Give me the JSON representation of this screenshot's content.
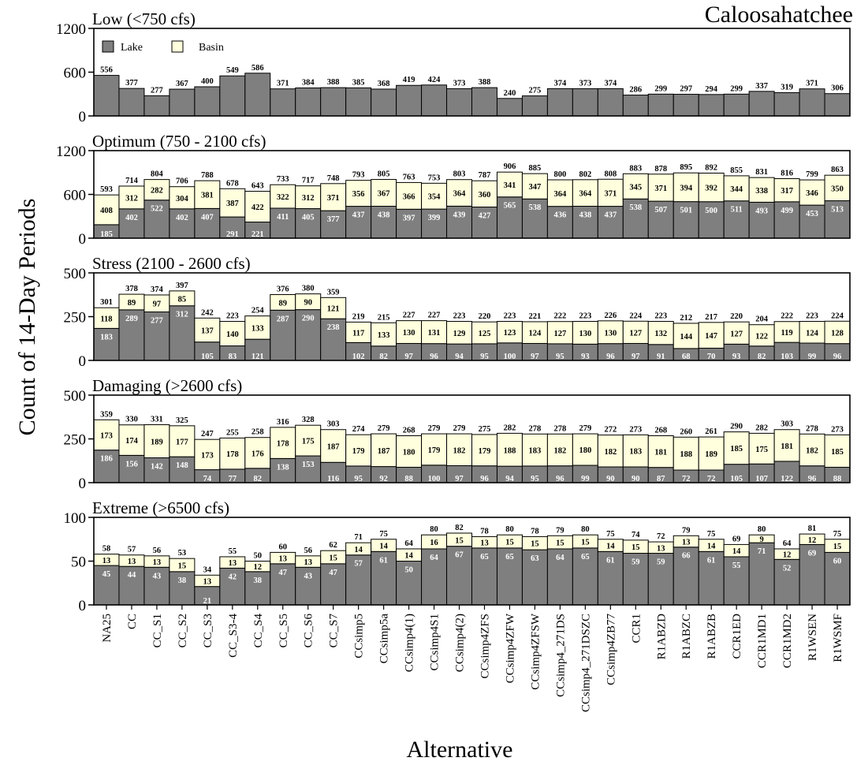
{
  "chart_data": {
    "type": "bar",
    "stacked": true,
    "title": "Caloosahatchee",
    "xlabel": "Alternative",
    "ylabel": "Count of 14-Day Periods",
    "legend": [
      {
        "name": "Lake",
        "color": "#7f7f7f"
      },
      {
        "name": "Basin",
        "color": "#ffffdd"
      }
    ],
    "colors": {
      "lake": "#7f7f7f",
      "basin": "#ffffdd",
      "border": "#000000"
    },
    "legend_placement": "top-left (first panel)",
    "categories": [
      "NA25",
      "CC",
      "CC_S1",
      "CC_S2",
      "CC_S3",
      "CC_S3-4",
      "CC_S4",
      "CC_S5",
      "CC_S6",
      "CC_S7",
      "CCsimp5",
      "CCsimp5a",
      "CCsimp4(1)",
      "CCsimp4S1",
      "CCsimp4(2)",
      "CCsimp4ZFS",
      "CCsimp4ZFW",
      "CCsimp4ZFSW",
      "CCsimp4_271DS",
      "CCsimp4_271DSZC",
      "CCsimp4ZB77",
      "CCR1",
      "R1ABZD",
      "R1ABZC",
      "R1ABZB",
      "CCR1ED",
      "CCR1MD1",
      "CCR1MD2",
      "R1WSEN",
      "R1WSMF"
    ],
    "panels": [
      {
        "title": "Low (<750 cfs)",
        "ylim": [
          0,
          1200
        ],
        "yticks": [
          "0",
          "600",
          "1200"
        ],
        "series": [
          {
            "name": "Lake",
            "values": [
              556,
              377,
              277,
              367,
              400,
              549,
              586,
              371,
              384,
              388,
              385,
              368,
              419,
              424,
              373,
              388,
              240,
              275,
              374,
              373,
              374,
              286,
              299,
              297,
              294,
              299,
              337,
              319,
              371,
              306
            ]
          }
        ],
        "totals": [
          556,
          377,
          277,
          367,
          400,
          549,
          586,
          371,
          384,
          388,
          385,
          368,
          419,
          424,
          373,
          388,
          240,
          275,
          374,
          373,
          374,
          286,
          299,
          297,
          294,
          299,
          337,
          319,
          371,
          306
        ]
      },
      {
        "title": "Optimum (750 - 2100 cfs)",
        "ylim": [
          0,
          1200
        ],
        "yticks": [
          "0",
          "600",
          "1200"
        ],
        "series": [
          {
            "name": "Lake",
            "values": [
              185,
              402,
              522,
              402,
              407,
              291,
              221,
              411,
              405,
              377,
              437,
              438,
              397,
              399,
              439,
              427,
              565,
              538,
              436,
              438,
              437,
              538,
              507,
              501,
              500,
              511,
              493,
              499,
              453,
              513
            ]
          },
          {
            "name": "Basin",
            "values": [
              408,
              312,
              282,
              304,
              381,
              387,
              422,
              322,
              312,
              371,
              356,
              367,
              366,
              354,
              364,
              360,
              341,
              347,
              364,
              364,
              371,
              345,
              371,
              394,
              392,
              344,
              338,
              317,
              346,
              350
            ]
          }
        ],
        "totals": [
          593,
          714,
          804,
          706,
          788,
          678,
          643,
          733,
          717,
          748,
          793,
          805,
          763,
          753,
          803,
          787,
          906,
          885,
          800,
          802,
          808,
          883,
          878,
          895,
          892,
          855,
          831,
          816,
          799,
          863
        ]
      },
      {
        "title": "Stress (2100 - 2600 cfs)",
        "ylim": [
          0,
          500
        ],
        "yticks": [
          "0",
          "250",
          "500"
        ],
        "series": [
          {
            "name": "Lake",
            "values": [
              183,
              289,
              277,
              312,
              105,
              83,
              121,
              287,
              290,
              238,
              102,
              82,
              97,
              96,
              94,
              95,
              100,
              97,
              95,
              93,
              96,
              97,
              91,
              68,
              70,
              93,
              82,
              103,
              99,
              96
            ]
          },
          {
            "name": "Basin",
            "values": [
              118,
              89,
              97,
              85,
              137,
              140,
              133,
              89,
              90,
              121,
              117,
              133,
              130,
              131,
              129,
              125,
              123,
              124,
              127,
              130,
              130,
              127,
              132,
              144,
              147,
              127,
              122,
              119,
              124,
              128
            ]
          }
        ],
        "totals": [
          301,
          378,
          374,
          397,
          242,
          223,
          254,
          376,
          380,
          359,
          219,
          215,
          227,
          227,
          223,
          220,
          223,
          221,
          222,
          223,
          226,
          224,
          223,
          212,
          217,
          220,
          204,
          222,
          223,
          224
        ]
      },
      {
        "title": "Damaging (>2600 cfs)",
        "ylim": [
          0,
          500
        ],
        "yticks": [
          "0",
          "250",
          "500"
        ],
        "series": [
          {
            "name": "Lake",
            "values": [
              186,
              156,
              142,
              148,
              74,
              77,
              82,
              138,
              153,
              116,
              95,
              92,
              88,
              100,
              97,
              96,
              94,
              95,
              96,
              99,
              90,
              90,
              87,
              72,
              72,
              105,
              107,
              122,
              96,
              88
            ]
          },
          {
            "name": "Basin",
            "values": [
              173,
              174,
              189,
              177,
              173,
              178,
              176,
              178,
              175,
              187,
              179,
              187,
              180,
              179,
              182,
              179,
              188,
              183,
              182,
              180,
              182,
              183,
              181,
              188,
              189,
              185,
              175,
              181,
              182,
              185
            ]
          }
        ],
        "totals": [
          359,
          330,
          331,
          325,
          247,
          255,
          258,
          316,
          328,
          303,
          274,
          279,
          268,
          279,
          279,
          275,
          282,
          278,
          278,
          279,
          272,
          273,
          268,
          260,
          261,
          290,
          282,
          303,
          278,
          273
        ]
      },
      {
        "title": "Extreme (>6500 cfs)",
        "ylim": [
          0,
          100
        ],
        "yticks": [
          "0",
          "50",
          "100"
        ],
        "series": [
          {
            "name": "Lake",
            "values": [
              45,
              44,
              43,
              38,
              21,
              42,
              38,
              47,
              43,
              47,
              57,
              61,
              50,
              64,
              67,
              65,
              65,
              63,
              64,
              65,
              61,
              59,
              59,
              66,
              61,
              55,
              71,
              52,
              69,
              60
            ]
          },
          {
            "name": "Basin",
            "values": [
              13,
              13,
              13,
              15,
              13,
              13,
              12,
              13,
              13,
              15,
              14,
              14,
              14,
              16,
              15,
              13,
              15,
              15,
              15,
              15,
              14,
              15,
              13,
              13,
              14,
              14,
              9,
              12,
              12,
              15
            ]
          }
        ],
        "totals": [
          58,
          57,
          56,
          53,
          34,
          55,
          50,
          60,
          56,
          62,
          71,
          75,
          64,
          80,
          82,
          78,
          80,
          78,
          79,
          80,
          75,
          74,
          72,
          79,
          75,
          69,
          80,
          64,
          81,
          75
        ]
      }
    ]
  }
}
